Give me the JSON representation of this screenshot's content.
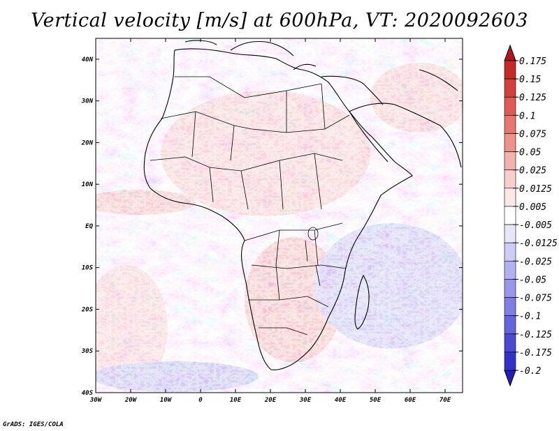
{
  "title": "Vertical velocity [m/s] at 600hPa, VT: 2020092603",
  "credit": "GrADS: IGES/COLA",
  "map": {
    "lon_range": [
      -30,
      75
    ],
    "lat_range": [
      -40,
      45
    ],
    "x_ticks": [
      {
        "lon": -30,
        "label": "30W"
      },
      {
        "lon": -20,
        "label": "20W"
      },
      {
        "lon": -10,
        "label": "10W"
      },
      {
        "lon": 0,
        "label": "0"
      },
      {
        "lon": 10,
        "label": "10E"
      },
      {
        "lon": 20,
        "label": "20E"
      },
      {
        "lon": 30,
        "label": "30E"
      },
      {
        "lon": 40,
        "label": "40E"
      },
      {
        "lon": 50,
        "label": "50E"
      },
      {
        "lon": 60,
        "label": "60E"
      },
      {
        "lon": 70,
        "label": "70E"
      }
    ],
    "y_ticks": [
      {
        "lat": 40,
        "label": "40N"
      },
      {
        "lat": 30,
        "label": "30N"
      },
      {
        "lat": 20,
        "label": "20N"
      },
      {
        "lat": 10,
        "label": "10N"
      },
      {
        "lat": 0,
        "label": "EQ"
      },
      {
        "lat": -10,
        "label": "10S"
      },
      {
        "lat": -20,
        "label": "20S"
      },
      {
        "lat": -30,
        "label": "30S"
      },
      {
        "lat": -40,
        "label": "40S"
      }
    ]
  },
  "colorbar": {
    "levels": [
      {
        "label": "0.175",
        "color": "#b0171c"
      },
      {
        "label": "0.15",
        "color": "#c42a2a"
      },
      {
        "label": "0.125",
        "color": "#d2403e"
      },
      {
        "label": "0.1",
        "color": "#dd5a55"
      },
      {
        "label": "0.075",
        "color": "#e6766f"
      },
      {
        "label": "0.05",
        "color": "#ee938c"
      },
      {
        "label": "0.025",
        "color": "#f4b2ad"
      },
      {
        "label": "0.0125",
        "color": "#f9cfcb"
      },
      {
        "label": "0.005",
        "color": "#fce8e6"
      },
      {
        "label": "-0.005",
        "color": "#ffffff"
      },
      {
        "label": "-0.0125",
        "color": "#e6e6fb"
      },
      {
        "label": "-0.025",
        "color": "#ccccf6"
      },
      {
        "label": "-0.05",
        "color": "#b2b2f0"
      },
      {
        "label": "-0.075",
        "color": "#9898ea"
      },
      {
        "label": "-0.1",
        "color": "#7e7ee3"
      },
      {
        "label": "-0.125",
        "color": "#6464dc"
      },
      {
        "label": "-0.175",
        "color": "#4a4ad2"
      },
      {
        "label": "-0.2",
        "color": "#3232c6"
      }
    ],
    "top_cap_color": "#b0171c",
    "bottom_cap_color": "#2020b4"
  }
}
